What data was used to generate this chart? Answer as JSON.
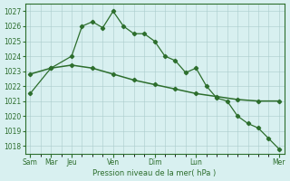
{
  "xlabel": "Pression niveau de la mer( hPa )",
  "ylim": [
    1017.5,
    1027.5
  ],
  "yticks": [
    1018,
    1019,
    1020,
    1021,
    1022,
    1023,
    1024,
    1025,
    1026,
    1027
  ],
  "bg_color": "#d8f0f0",
  "grid_color": "#aacccc",
  "line_color": "#2d6e2d",
  "line1_x": [
    0,
    2,
    4,
    5,
    6,
    7,
    8,
    9,
    10,
    11,
    12,
    13,
    14,
    15,
    16,
    17,
    18,
    19,
    20,
    21,
    22,
    23,
    24
  ],
  "line1_y": [
    1021.5,
    1023.2,
    1024.0,
    1026.0,
    1026.3,
    1025.9,
    1027.0,
    1026.0,
    1025.5,
    1025.5,
    1025.0,
    1024.0,
    1023.7,
    1022.9,
    1023.2,
    1022.0,
    1021.2,
    1021.0,
    1020.0,
    1019.5,
    1019.2,
    1018.5,
    1017.8
  ],
  "line2_x": [
    0,
    2,
    4,
    6,
    8,
    10,
    12,
    14,
    16,
    18,
    20,
    22,
    24
  ],
  "line2_y": [
    1022.8,
    1023.2,
    1023.4,
    1023.2,
    1022.8,
    1022.4,
    1022.1,
    1021.8,
    1021.5,
    1021.3,
    1021.1,
    1021.0,
    1021.0
  ],
  "major_x": [
    0,
    2,
    4,
    8,
    12,
    16,
    24
  ],
  "major_labels": [
    "Sam",
    "Mar",
    "Jeu",
    "Ven",
    "Dim",
    "Lun",
    "Mer"
  ],
  "xlim": [
    -0.5,
    24.5
  ]
}
